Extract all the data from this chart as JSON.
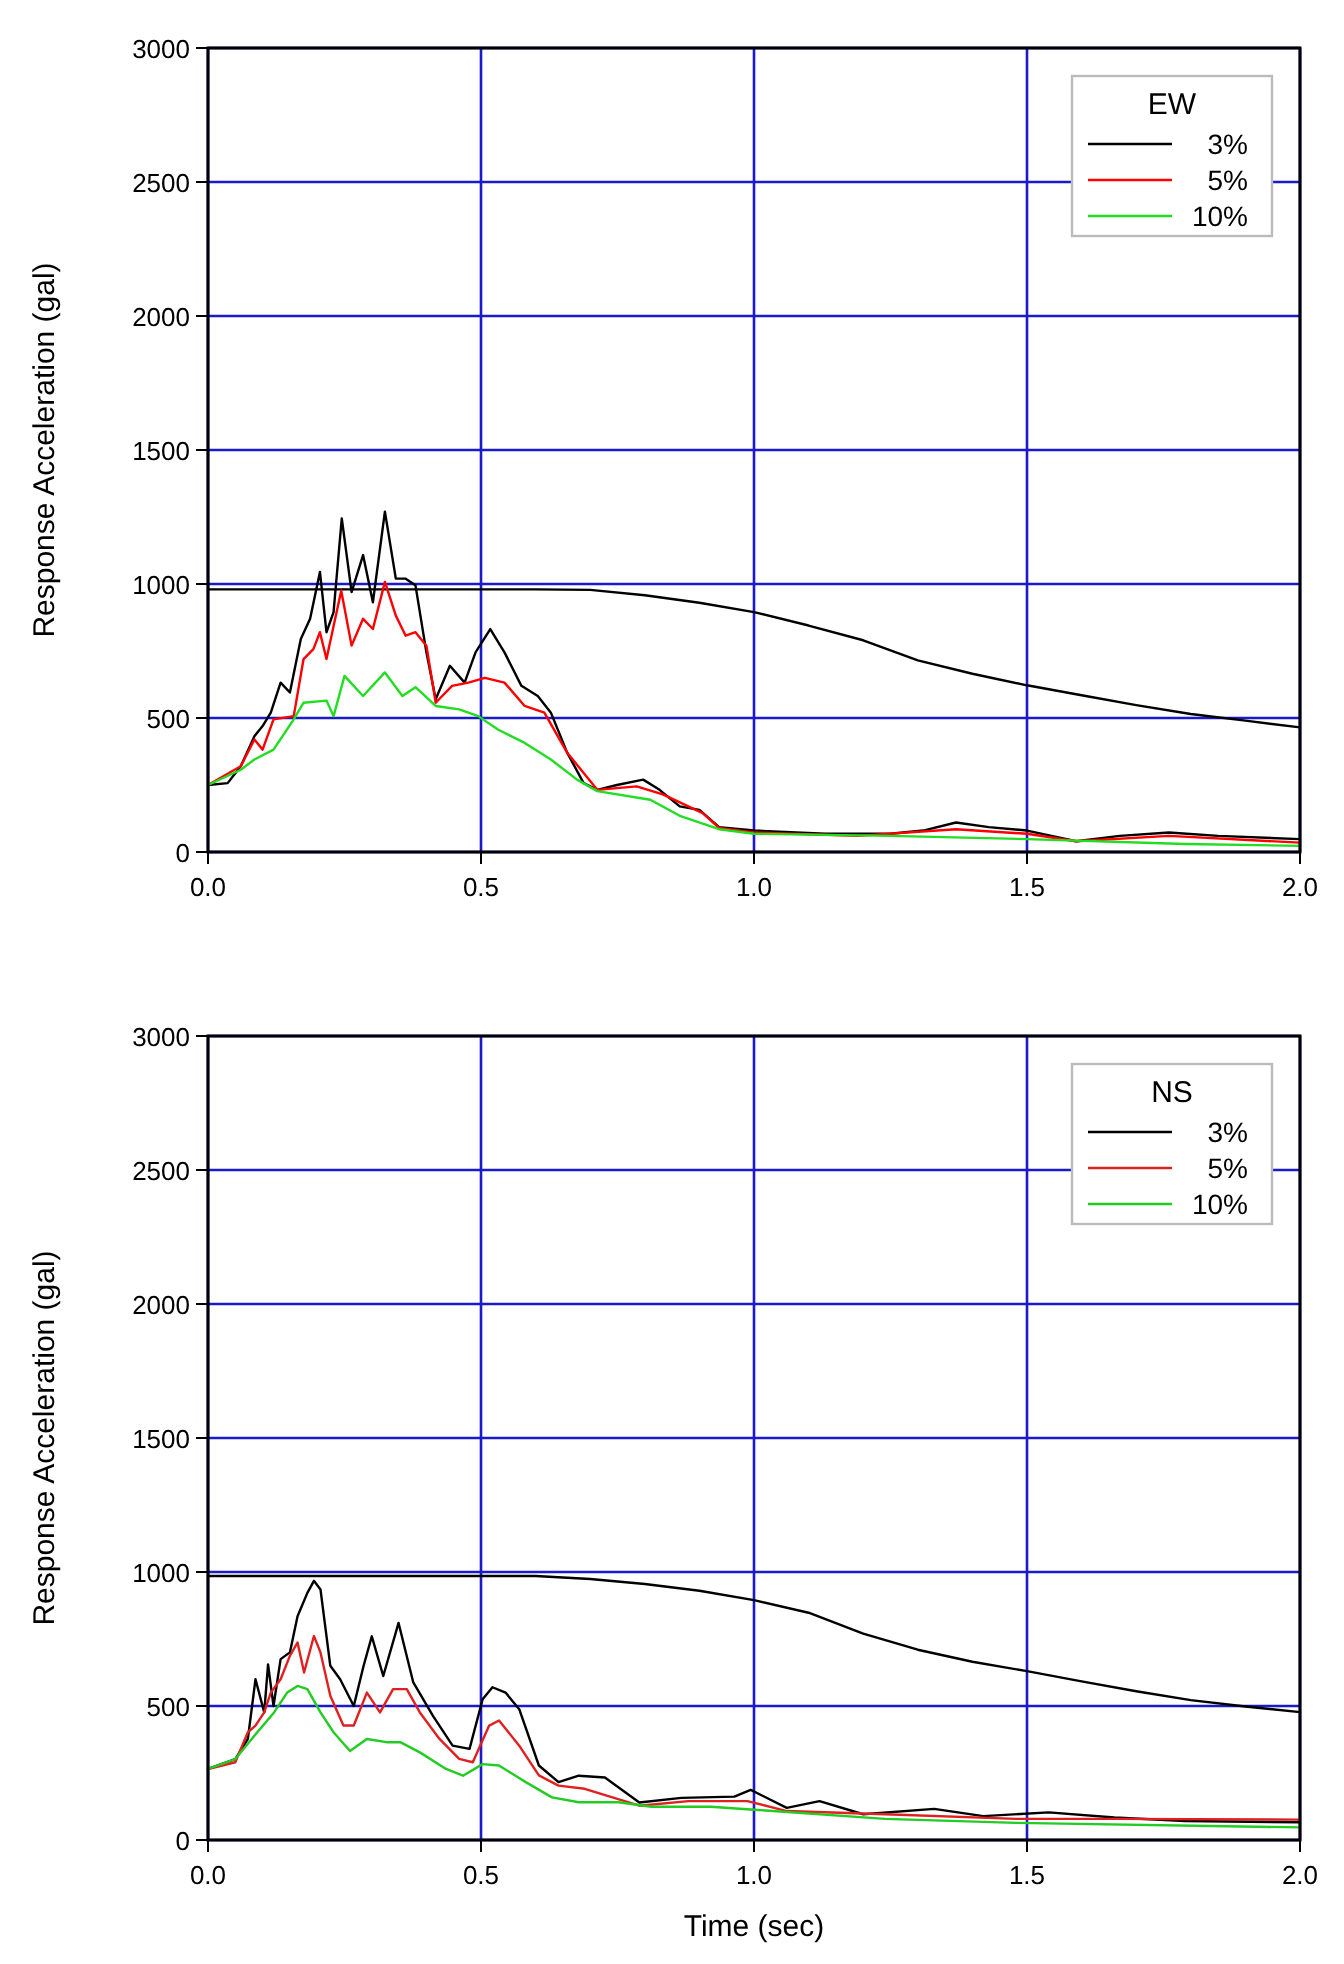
{
  "chart_data": [
    {
      "type": "line",
      "legend_title": "EW",
      "ylabel": "Response Acceleration (gal)",
      "xlim": [
        0,
        2
      ],
      "xticks": [
        {
          "value": 0,
          "label": "0.0"
        },
        {
          "value": 0.5,
          "label": "0.5"
        },
        {
          "value": 1,
          "label": "1.0"
        },
        {
          "value": 1.5,
          "label": "1.5"
        },
        {
          "value": 2,
          "label": "2.0"
        }
      ],
      "ylim": [
        0,
        3000
      ],
      "yticks": [
        0,
        500,
        1000,
        1500,
        2000,
        2500,
        3000
      ],
      "grid": true,
      "legend": "top right",
      "series": [
        {
          "color": "#000000",
          "x": [
            0,
            0.6,
            0.7,
            0.8,
            0.9,
            1.0,
            1.1,
            1.2,
            1.3,
            1.4,
            1.5,
            1.6,
            1.7,
            1.8,
            1.9,
            2.0
          ],
          "values": [
            980,
            980,
            978,
            958,
            930,
            895,
            845,
            790,
            715,
            665,
            622,
            585,
            548,
            515,
            490,
            465
          ]
        },
        {
          "name": "3%",
          "color": "#000000",
          "x": [
            0,
            0.036,
            0.06,
            0.085,
            0.1,
            0.115,
            0.133,
            0.15,
            0.17,
            0.187,
            0.205,
            0.217,
            0.23,
            0.245,
            0.263,
            0.284,
            0.302,
            0.324,
            0.344,
            0.362,
            0.38,
            0.4,
            0.417,
            0.443,
            0.47,
            0.49,
            0.517,
            0.543,
            0.574,
            0.604,
            0.628,
            0.658,
            0.688,
            0.713,
            0.749,
            0.797,
            0.827,
            0.864,
            0.9,
            0.936,
            1.0,
            1.13,
            1.25,
            1.31,
            1.37,
            1.43,
            1.5,
            1.59,
            1.67,
            1.76,
            1.85,
            2.0
          ],
          "values": [
            250,
            257,
            320,
            432,
            470,
            520,
            632,
            595,
            795,
            870,
            1045,
            820,
            895,
            1245,
            970,
            1108,
            932,
            1270,
            1020,
            1020,
            995,
            745,
            570,
            695,
            632,
            745,
            832,
            745,
            620,
            582,
            520,
            370,
            257,
            232,
            250,
            270,
            232,
            170,
            157,
            93,
            80,
            68,
            68,
            80,
            110,
            93,
            80,
            40,
            60,
            73,
            60,
            48
          ]
        },
        {
          "name": "5%",
          "color": "#ff0000",
          "x": [
            0,
            0.06,
            0.085,
            0.1,
            0.12,
            0.157,
            0.175,
            0.193,
            0.205,
            0.217,
            0.244,
            0.263,
            0.284,
            0.302,
            0.324,
            0.344,
            0.362,
            0.38,
            0.4,
            0.417,
            0.447,
            0.477,
            0.507,
            0.543,
            0.58,
            0.616,
            0.658,
            0.713,
            0.785,
            0.833,
            0.906,
            0.936,
            1.0,
            1.19,
            1.37,
            1.5,
            1.59,
            1.76,
            2.0
          ],
          "values": [
            250,
            320,
            420,
            382,
            495,
            507,
            720,
            757,
            820,
            720,
            975,
            770,
            870,
            832,
            1008,
            882,
            807,
            820,
            770,
            557,
            620,
            632,
            650,
            632,
            545,
            520,
            370,
            232,
            245,
            215,
            145,
            90,
            73,
            60,
            85,
            68,
            40,
            60,
            35
          ]
        },
        {
          "name": "10%",
          "color": "#22dd22",
          "x": [
            0,
            0.06,
            0.085,
            0.12,
            0.157,
            0.175,
            0.217,
            0.23,
            0.25,
            0.284,
            0.324,
            0.356,
            0.38,
            0.417,
            0.46,
            0.495,
            0.531,
            0.58,
            0.628,
            0.676,
            0.713,
            0.81,
            0.864,
            0.936,
            1.0,
            1.25,
            1.5,
            1.79,
            2.0
          ],
          "values": [
            250,
            307,
            345,
            382,
            495,
            557,
            565,
            507,
            657,
            582,
            670,
            582,
            615,
            545,
            532,
            507,
            457,
            407,
            345,
            270,
            227,
            195,
            135,
            85,
            68,
            60,
            48,
            30,
            23
          ]
        }
      ]
    },
    {
      "type": "line",
      "legend_title": "NS",
      "xlabel": "Time (sec)",
      "ylabel": "Response Acceleration (gal)",
      "xlim": [
        0,
        2
      ],
      "xticks": [
        {
          "value": 0,
          "label": "0.0"
        },
        {
          "value": 0.5,
          "label": "0.5"
        },
        {
          "value": 1,
          "label": "1.0"
        },
        {
          "value": 1.5,
          "label": "1.5"
        },
        {
          "value": 2,
          "label": "2.0"
        }
      ],
      "ylim": [
        0,
        3000
      ],
      "yticks": [
        0,
        500,
        1000,
        1500,
        2000,
        2500,
        3000
      ],
      "grid": true,
      "legend": "top right",
      "series": [
        {
          "color": "#000000",
          "x": [
            0,
            0.6,
            0.7,
            0.8,
            0.9,
            1.0,
            1.1,
            1.2,
            1.3,
            1.4,
            1.5,
            1.6,
            1.7,
            1.8,
            1.9,
            2.0
          ],
          "values": [
            985,
            985,
            974,
            955,
            930,
            895,
            848,
            770,
            710,
            665,
            630,
            592,
            555,
            522,
            498,
            477
          ]
        },
        {
          "name": "3%",
          "color": "#000000",
          "x": [
            0,
            0.05,
            0.073,
            0.087,
            0.103,
            0.11,
            0.12,
            0.133,
            0.15,
            0.164,
            0.182,
            0.194,
            0.206,
            0.224,
            0.242,
            0.267,
            0.285,
            0.3,
            0.321,
            0.349,
            0.376,
            0.412,
            0.448,
            0.479,
            0.503,
            0.521,
            0.545,
            0.57,
            0.606,
            0.642,
            0.679,
            0.727,
            0.79,
            0.867,
            0.964,
            0.994,
            1.06,
            1.12,
            1.2,
            1.33,
            1.42,
            1.54,
            1.66,
            1.79,
            2.0
          ],
          "values": [
            265,
            302,
            377,
            600,
            476,
            655,
            500,
            675,
            700,
            835,
            922,
            967,
            935,
            650,
            600,
            500,
            650,
            760,
            612,
            810,
            588,
            463,
            352,
            340,
            525,
            570,
            550,
            488,
            278,
            216,
            240,
            233,
            140,
            157,
            162,
            187,
            120,
            145,
            96,
            116,
            89,
            103,
            84,
            71,
            66
          ]
        },
        {
          "name": "5%",
          "color": "#e02020",
          "x": [
            0,
            0.05,
            0.073,
            0.087,
            0.103,
            0.115,
            0.133,
            0.15,
            0.164,
            0.176,
            0.194,
            0.206,
            0.224,
            0.248,
            0.267,
            0.291,
            0.315,
            0.339,
            0.364,
            0.388,
            0.424,
            0.46,
            0.485,
            0.515,
            0.533,
            0.57,
            0.606,
            0.642,
            0.69,
            0.79,
            0.88,
            0.988,
            1.06,
            1.24,
            1.48,
            1.66,
            2.0
          ],
          "values": [
            265,
            290,
            402,
            427,
            476,
            550,
            600,
            687,
            737,
            625,
            761,
            700,
            538,
            427,
            427,
            550,
            476,
            563,
            563,
            476,
            377,
            303,
            290,
            427,
            446,
            352,
            241,
            203,
            191,
            128,
            145,
            145,
            108,
            96,
            79,
            79,
            76
          ]
        },
        {
          "name": "10%",
          "color": "#22cc22",
          "x": [
            0,
            0.05,
            0.085,
            0.121,
            0.145,
            0.164,
            0.182,
            0.206,
            0.23,
            0.26,
            0.291,
            0.327,
            0.352,
            0.388,
            0.436,
            0.467,
            0.503,
            0.533,
            0.582,
            0.63,
            0.679,
            0.752,
            0.812,
            0.921,
            1.0,
            1.24,
            1.48,
            2.0
          ],
          "values": [
            265,
            302,
            389,
            476,
            550,
            575,
            563,
            476,
            402,
            332,
            377,
            365,
            365,
            327,
            265,
            240,
            283,
            278,
            216,
            159,
            141,
            141,
            124,
            124,
            113,
            79,
            64,
            47
          ]
        }
      ]
    }
  ]
}
